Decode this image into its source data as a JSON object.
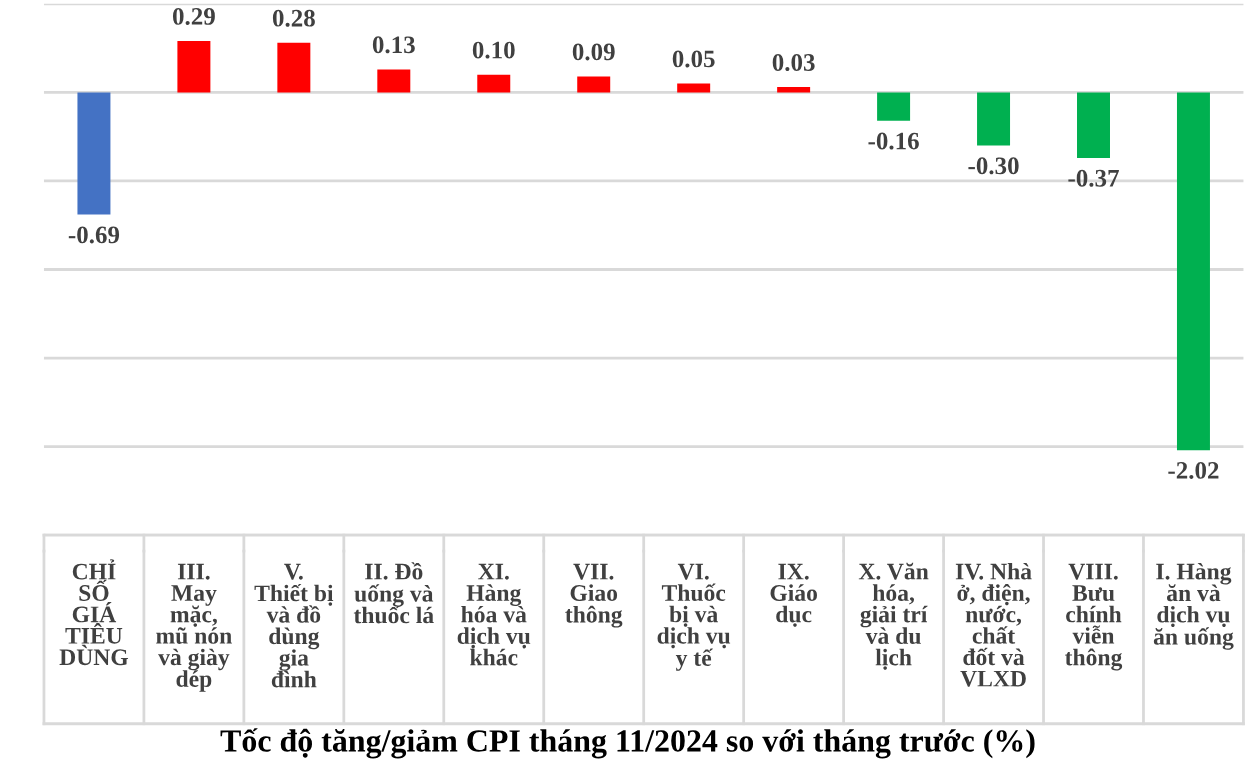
{
  "chart_data": {
    "type": "bar",
    "title": "Tốc độ tăng/giảm CPI tháng 11/2024 so với tháng trước (%)",
    "categories": [
      "CHỈ\nSỐ\nGIÁ\nTIÊU\nDÙNG",
      "III.\nMay\nmặc,\nmũ nón\nvà giày\ndép",
      "V.\nThiết bị\nvà đồ\ndùng\ngia\nđình",
      "II. Đồ\nuống và\nthuốc lá",
      "XI.\nHàng\nhóa và\ndịch vụ\nkhác",
      "VII.\nGiao\nthông",
      "VI.\nThuốc\nbị và\ndịch vụ\ny tế",
      "IX.\nGiáo\ndục",
      "X. Văn\nhóa,\ngiải trí\nvà du\nlịch",
      "IV. Nhà\nở, điện,\nnước,\nchất\nđốt và\nVLXD",
      "VIII.\nBưu\nchính\nviễn\nthông",
      "I. Hàng\năn và\ndịch vụ\năn uống"
    ],
    "values": [
      -0.69,
      0.29,
      0.28,
      0.13,
      0.1,
      0.09,
      0.05,
      0.03,
      -0.16,
      -0.3,
      -0.37,
      -2.02
    ],
    "value_labels": [
      "-0.69",
      "0.29",
      "0.28",
      "0.13",
      "0.10",
      "0.09",
      "0.05",
      "0.03",
      "-0.16",
      "-0.30",
      "-0.37",
      "-2.02"
    ],
    "colors": [
      "#4472c4",
      "#ff0000",
      "#ff0000",
      "#ff0000",
      "#ff0000",
      "#ff0000",
      "#ff0000",
      "#ff0000",
      "#00b050",
      "#00b050",
      "#00b050",
      "#00b050"
    ],
    "ylim": [
      -2.5,
      0.5
    ],
    "yticks": [
      {
        "value": -2.5,
        "label": null
      },
      {
        "value": -2.0,
        "label": null
      },
      {
        "value": -1.5,
        "label": null
      },
      {
        "value": -1.0,
        "label": null
      },
      {
        "value": -0.5,
        "label": null
      },
      {
        "value": 0,
        "label": null
      },
      {
        "value": 0.5,
        "label": null
      }
    ],
    "grid": "y",
    "tick_labels": "x"
  }
}
